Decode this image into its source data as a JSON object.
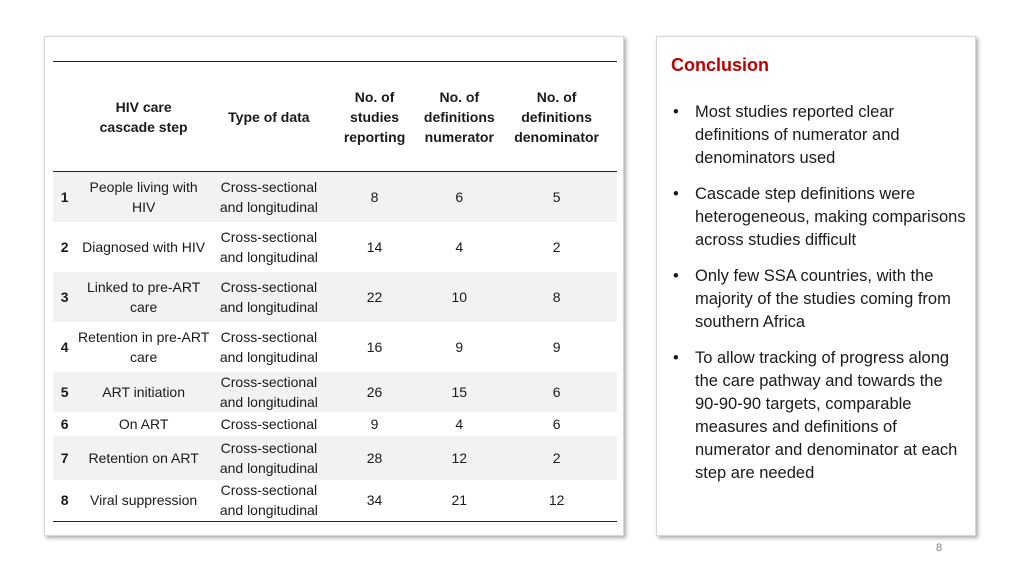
{
  "table": {
    "headers": {
      "step": "HIV care cascade step",
      "type": "Type of data",
      "studies": "No. of studies reporting",
      "numerator": "No. of definitions numerator",
      "denominator": "No. of definitions denominator"
    },
    "rows": [
      {
        "n": "1",
        "step": "People living with HIV",
        "type": "Cross-sectional and longitudinal",
        "studies": "8",
        "numerator": "6",
        "denominator": "5"
      },
      {
        "n": "2",
        "step": "Diagnosed with HIV",
        "type": "Cross-sectional and longitudinal",
        "studies": "14",
        "numerator": "4",
        "denominator": "2"
      },
      {
        "n": "3",
        "step": "Linked to pre-ART care",
        "type": "Cross-sectional and longitudinal",
        "studies": "22",
        "numerator": "10",
        "denominator": "8"
      },
      {
        "n": "4",
        "step": "Retention in pre-ART care",
        "type": "Cross-sectional and longitudinal",
        "studies": "16",
        "numerator": "9",
        "denominator": "9"
      },
      {
        "n": "5",
        "step": "ART initiation",
        "type": "Cross-sectional and longitudinal",
        "studies": "26",
        "numerator": "15",
        "denominator": "6"
      },
      {
        "n": "6",
        "step": "On ART",
        "type": "Cross-sectional",
        "studies": "9",
        "numerator": "4",
        "denominator": "6"
      },
      {
        "n": "7",
        "step": "Retention on ART",
        "type": "Cross-sectional and longitudinal",
        "studies": "28",
        "numerator": "12",
        "denominator": "2"
      },
      {
        "n": "8",
        "step": "Viral suppression",
        "type": "Cross-sectional and longitudinal",
        "studies": "34",
        "numerator": "21",
        "denominator": "12"
      }
    ]
  },
  "conclusion": {
    "title": "Conclusion",
    "bullet": "•",
    "items": [
      "Most studies reported clear definitions of numerator and denominators used",
      "Cascade step definitions were heterogeneous, making comparisons across studies difficult",
      "Only few SSA countries, with the majority of the studies coming from southern Africa",
      "To allow tracking of progress along the care pathway and towards the 90-90-90 targets, comparable measures and definitions of numerator and denominator at each step are needed"
    ]
  },
  "page_number": "8",
  "colors": {
    "accent": "#c00000",
    "row_shade": "#f2f2f2"
  }
}
